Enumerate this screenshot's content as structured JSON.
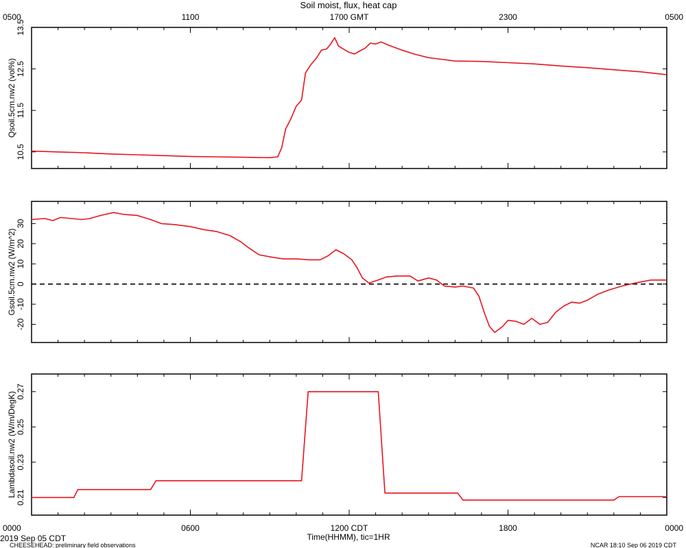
{
  "page": {
    "title": "Soil moist, flux, heat cap",
    "footer_left_date": "2019 Sep 05 CDT",
    "footer_left_project": "CHEESEHEAD: preliminary field observations",
    "footer_right": "NCAR 18:10 Sep 06 2019 CDT"
  },
  "chart_data": [
    {
      "type": "line",
      "title": "Soil moist, flux, heat cap",
      "ylabel": "Qsoil.5cm.nw2 (vol%)",
      "xlabel": "",
      "xlim": [
        0,
        24
      ],
      "ylim": [
        10.1,
        13.5
      ],
      "yticks": [
        10.5,
        11.5,
        12.5,
        13.5
      ],
      "ytick_labels": [
        "10.5",
        "11.5",
        "12.5",
        "13.5"
      ],
      "top_axis_ticks": [
        "0500",
        "1100",
        "1700 GMT",
        "2300",
        "0500"
      ],
      "grid": false,
      "series": [
        {
          "color": "#e8141c",
          "points": [
            [
              0,
              10.52
            ],
            [
              1,
              10.5
            ],
            [
              2,
              10.48
            ],
            [
              3,
              10.45
            ],
            [
              4,
              10.43
            ],
            [
              5,
              10.41
            ],
            [
              6,
              10.39
            ],
            [
              7,
              10.38
            ],
            [
              8,
              10.37
            ],
            [
              9,
              10.36
            ],
            [
              9.3,
              10.38
            ],
            [
              9.45,
              10.6
            ],
            [
              9.6,
              11.05
            ],
            [
              9.8,
              11.3
            ],
            [
              10.0,
              11.6
            ],
            [
              10.2,
              11.75
            ],
            [
              10.35,
              12.4
            ],
            [
              10.55,
              12.6
            ],
            [
              10.75,
              12.75
            ],
            [
              10.95,
              12.95
            ],
            [
              11.15,
              12.98
            ],
            [
              11.3,
              13.1
            ],
            [
              11.45,
              13.25
            ],
            [
              11.6,
              13.05
            ],
            [
              11.8,
              12.97
            ],
            [
              12.0,
              12.9
            ],
            [
              12.2,
              12.86
            ],
            [
              12.4,
              12.93
            ],
            [
              12.6,
              13.0
            ],
            [
              12.8,
              13.12
            ],
            [
              13.0,
              13.1
            ],
            [
              13.2,
              13.15
            ],
            [
              13.5,
              13.07
            ],
            [
              14,
              12.95
            ],
            [
              14.5,
              12.85
            ],
            [
              15,
              12.77
            ],
            [
              16,
              12.69
            ],
            [
              17,
              12.68
            ],
            [
              18,
              12.65
            ],
            [
              19,
              12.62
            ],
            [
              20,
              12.57
            ],
            [
              21,
              12.53
            ],
            [
              22,
              12.48
            ],
            [
              23,
              12.43
            ],
            [
              24,
              12.36
            ]
          ]
        }
      ]
    },
    {
      "type": "line",
      "ylabel": "Gsoil.5cm.nw2 (W/m^2)",
      "xlabel": "",
      "xlim": [
        0,
        24
      ],
      "ylim": [
        -29,
        41
      ],
      "yticks": [
        -20,
        -10,
        0,
        10,
        20,
        30
      ],
      "ytick_labels": [
        "-20",
        "-10",
        "0",
        "10",
        "20",
        "30"
      ],
      "zero_line": true,
      "grid": false,
      "series": [
        {
          "color": "#e8141c",
          "points": [
            [
              0,
              32
            ],
            [
              0.5,
              32.5
            ],
            [
              0.8,
              31.5
            ],
            [
              1.1,
              33
            ],
            [
              1.5,
              32.5
            ],
            [
              1.9,
              32
            ],
            [
              2.2,
              32.5
            ],
            [
              2.6,
              34
            ],
            [
              3.1,
              35.5
            ],
            [
              3.5,
              34.5
            ],
            [
              4,
              34
            ],
            [
              4.5,
              32
            ],
            [
              4.9,
              30
            ],
            [
              5.4,
              29.5
            ],
            [
              6,
              28.5
            ],
            [
              6.5,
              27
            ],
            [
              7,
              26
            ],
            [
              7.5,
              24
            ],
            [
              7.9,
              21
            ],
            [
              8.2,
              18
            ],
            [
              8.6,
              14.5
            ],
            [
              9,
              13.5
            ],
            [
              9.5,
              12.5
            ],
            [
              10,
              12.5
            ],
            [
              10.5,
              12
            ],
            [
              10.9,
              12
            ],
            [
              11.2,
              14
            ],
            [
              11.5,
              17
            ],
            [
              11.8,
              15
            ],
            [
              12.1,
              12
            ],
            [
              12.3,
              8
            ],
            [
              12.5,
              3
            ],
            [
              12.75,
              0.5
            ],
            [
              13.1,
              2
            ],
            [
              13.4,
              3.5
            ],
            [
              13.8,
              4
            ],
            [
              14.3,
              4
            ],
            [
              14.6,
              1.5
            ],
            [
              15,
              3
            ],
            [
              15.3,
              2
            ],
            [
              15.6,
              -1
            ],
            [
              16,
              -1.5
            ],
            [
              16.3,
              -1
            ],
            [
              16.7,
              -2
            ],
            [
              16.9,
              -6
            ],
            [
              17.1,
              -14
            ],
            [
              17.3,
              -21
            ],
            [
              17.5,
              -24
            ],
            [
              17.8,
              -21
            ],
            [
              18.0,
              -18
            ],
            [
              18.3,
              -18.5
            ],
            [
              18.6,
              -20
            ],
            [
              18.9,
              -17
            ],
            [
              19.2,
              -20
            ],
            [
              19.5,
              -19
            ],
            [
              19.8,
              -14
            ],
            [
              20.1,
              -11
            ],
            [
              20.4,
              -9
            ],
            [
              20.7,
              -9.5
            ],
            [
              21,
              -8
            ],
            [
              21.4,
              -5
            ],
            [
              21.8,
              -3
            ],
            [
              22.3,
              -1
            ],
            [
              22.8,
              0.5
            ],
            [
              23.4,
              2
            ],
            [
              24,
              2
            ]
          ]
        }
      ]
    },
    {
      "type": "line",
      "ylabel": "Lambdasoil.nw2 (W/m/DegK)",
      "xlabel": "Time(HHMM), tic=1HR",
      "xlim": [
        0,
        24
      ],
      "ylim": [
        0.2,
        0.28
      ],
      "yticks": [
        0.21,
        0.23,
        0.25,
        0.27
      ],
      "ytick_labels": [
        "0.21",
        "0.23",
        "0.25",
        "0.27"
      ],
      "xticks": [
        0,
        6,
        12,
        18,
        24
      ],
      "xtick_labels": [
        "0000",
        "0600",
        "1200 CDT",
        "1800",
        "0000"
      ],
      "grid": false,
      "series": [
        {
          "color": "#e8141c",
          "points": [
            [
              0,
              0.21
            ],
            [
              1.6,
              0.21
            ],
            [
              1.75,
              0.2145
            ],
            [
              4.5,
              0.2145
            ],
            [
              4.7,
              0.2195
            ],
            [
              10.2,
              0.2195
            ],
            [
              10.45,
              0.27
            ],
            [
              13.1,
              0.27
            ],
            [
              13.35,
              0.2125
            ],
            [
              16.1,
              0.2125
            ],
            [
              16.3,
              0.2085
            ],
            [
              22.0,
              0.2085
            ],
            [
              22.2,
              0.2105
            ],
            [
              24,
              0.2105
            ]
          ]
        }
      ]
    }
  ]
}
